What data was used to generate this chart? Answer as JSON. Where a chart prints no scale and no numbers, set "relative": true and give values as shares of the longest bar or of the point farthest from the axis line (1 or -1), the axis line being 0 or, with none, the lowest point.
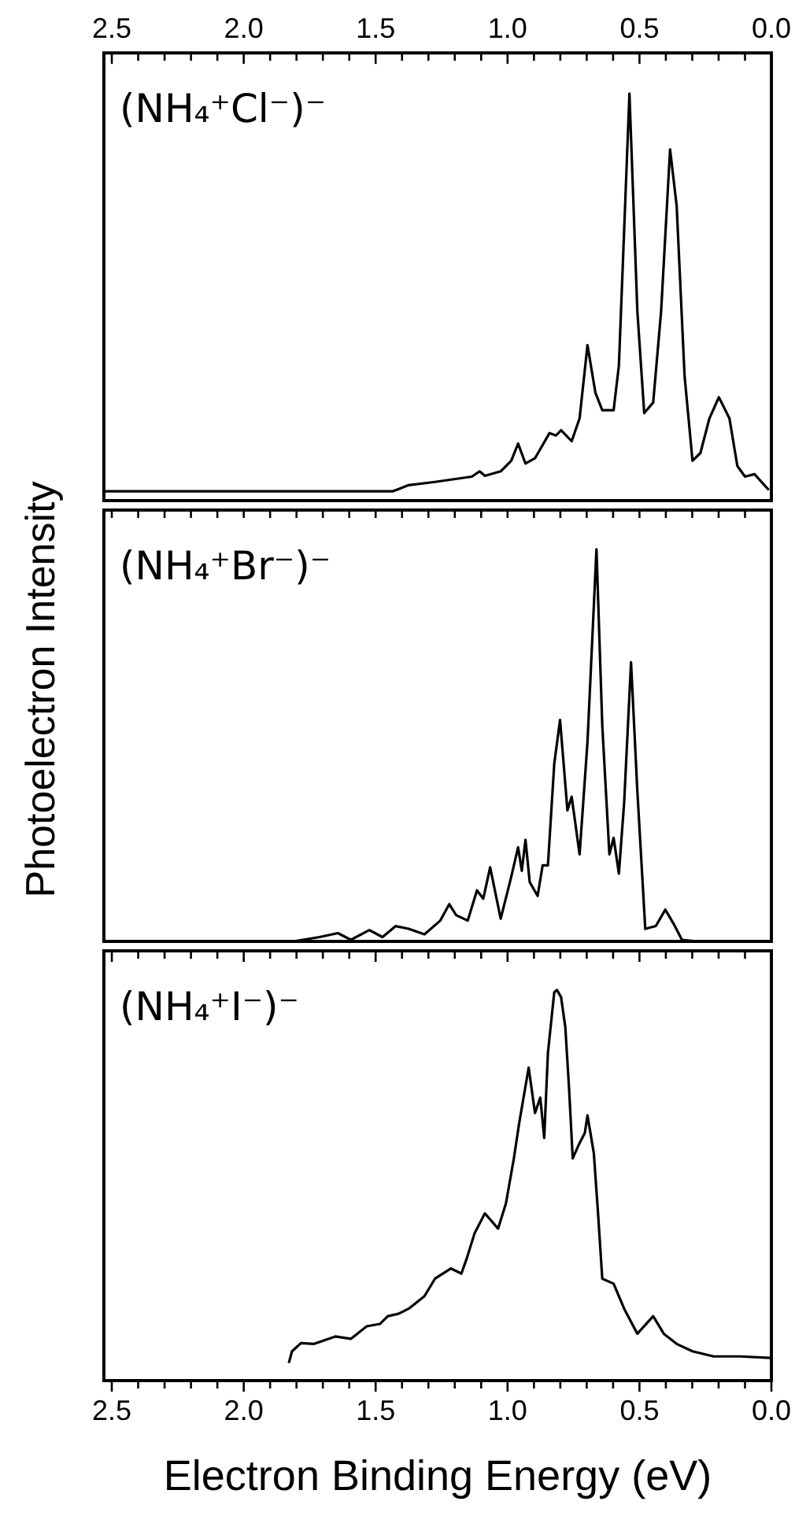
{
  "chart_data": [
    {
      "type": "line",
      "relative": true,
      "tick_labels": "x",
      "annotations": [
        "(NH₄⁺Cl⁻)⁻"
      ],
      "color": "#000000",
      "xlim": [
        2.53,
        0
      ],
      "xticks": [
        {
          "value": 2.5,
          "label": "2.5"
        },
        {
          "value": 2.4,
          "label": null
        },
        {
          "value": 2.3,
          "label": null
        },
        {
          "value": 2.2,
          "label": null
        },
        {
          "value": 2.1,
          "label": null
        },
        {
          "value": 2.0,
          "label": "2.0"
        },
        {
          "value": 1.9,
          "label": null
        },
        {
          "value": 1.8,
          "label": null
        },
        {
          "value": 1.7,
          "label": null
        },
        {
          "value": 1.6,
          "label": null
        },
        {
          "value": 1.5,
          "label": "1.5"
        },
        {
          "value": 1.4,
          "label": null
        },
        {
          "value": 1.3,
          "label": null
        },
        {
          "value": 1.2,
          "label": null
        },
        {
          "value": 1.1,
          "label": null
        },
        {
          "value": 1.0,
          "label": "1.0"
        },
        {
          "value": 0.9,
          "label": null
        },
        {
          "value": 0.8,
          "label": null
        },
        {
          "value": 0.7,
          "label": null
        },
        {
          "value": 0.6,
          "label": null
        },
        {
          "value": 0.5,
          "label": "0.5"
        },
        {
          "value": 0.4,
          "label": null
        },
        {
          "value": 0.3,
          "label": null
        },
        {
          "value": 0.2,
          "label": null
        },
        {
          "value": 0.1,
          "label": null
        },
        {
          "value": 0,
          "label": "0.0"
        }
      ],
      "x": [
        2.53,
        1.434,
        1.375,
        1.275,
        1.135,
        1.106,
        1.086,
        1.026,
        0.986,
        0.96,
        0.932,
        0.896,
        0.841,
        0.817,
        0.797,
        0.757,
        0.727,
        0.697,
        0.667,
        0.641,
        0.598,
        0.578,
        0.538,
        0.508,
        0.482,
        0.448,
        0.418,
        0.384,
        0.359,
        0.329,
        0.299,
        0.269,
        0.235,
        0.199,
        0.159,
        0.129,
        0.1,
        0.064,
        0.01
      ],
      "values": [
        0.023,
        0.023,
        0.038,
        0.046,
        0.059,
        0.072,
        0.061,
        0.072,
        0.098,
        0.14,
        0.091,
        0.104,
        0.166,
        0.16,
        0.173,
        0.146,
        0.202,
        0.382,
        0.265,
        0.222,
        0.222,
        0.332,
        1.0,
        0.465,
        0.215,
        0.241,
        0.465,
        0.863,
        0.724,
        0.306,
        0.098,
        0.117,
        0.202,
        0.254,
        0.202,
        0.085,
        0.059,
        0.065,
        0.026
      ]
    },
    {
      "type": "line",
      "relative": true,
      "tick_labels": false,
      "ylabel": "Photoelectron Intensity",
      "annotations": [
        "(NH₄⁺Br⁻)⁻"
      ],
      "color": "#000000",
      "xlim": [
        2.53,
        0
      ],
      "xticks": [
        {
          "value": 2.5,
          "label": null
        },
        {
          "value": 2.4,
          "label": null
        },
        {
          "value": 2.3,
          "label": null
        },
        {
          "value": 2.2,
          "label": null
        },
        {
          "value": 2.1,
          "label": null
        },
        {
          "value": 2.0,
          "label": null
        },
        {
          "value": 1.9,
          "label": null
        },
        {
          "value": 1.8,
          "label": null
        },
        {
          "value": 1.7,
          "label": null
        },
        {
          "value": 1.6,
          "label": null
        },
        {
          "value": 1.5,
          "label": null
        },
        {
          "value": 1.4,
          "label": null
        },
        {
          "value": 1.3,
          "label": null
        },
        {
          "value": 1.2,
          "label": null
        },
        {
          "value": 1.1,
          "label": null
        },
        {
          "value": 1.0,
          "label": null
        },
        {
          "value": 0.9,
          "label": null
        },
        {
          "value": 0.8,
          "label": null
        },
        {
          "value": 0.7,
          "label": null
        },
        {
          "value": 0.6,
          "label": null
        },
        {
          "value": 0.5,
          "label": null
        },
        {
          "value": 0.4,
          "label": null
        },
        {
          "value": 0.3,
          "label": null
        },
        {
          "value": 0.2,
          "label": null
        },
        {
          "value": 0.1,
          "label": null
        },
        {
          "value": 0,
          "label": null
        }
      ],
      "x": [
        2.53,
        1.813,
        1.713,
        1.643,
        1.594,
        1.524,
        1.474,
        1.424,
        1.375,
        1.315,
        1.255,
        1.221,
        1.195,
        1.151,
        1.116,
        1.092,
        1.066,
        1.026,
        0.986,
        0.96,
        0.946,
        0.932,
        0.916,
        0.886,
        0.867,
        0.847,
        0.823,
        0.801,
        0.773,
        0.757,
        0.727,
        0.697,
        0.663,
        0.641,
        0.614,
        0.598,
        0.578,
        0.558,
        0.532,
        0.508,
        0.478,
        0.438,
        0.402,
        0.369,
        0.339,
        0.279,
        0
      ],
      "values": [
        0,
        0,
        0.011,
        0.021,
        0.004,
        0.029,
        0.011,
        0.039,
        0.032,
        0.018,
        0.053,
        0.095,
        0.067,
        0.053,
        0.13,
        0.109,
        0.189,
        0.058,
        0.165,
        0.24,
        0.18,
        0.259,
        0.151,
        0.116,
        0.194,
        0.194,
        0.453,
        0.565,
        0.334,
        0.369,
        0.222,
        0.509,
        1.0,
        0.551,
        0.222,
        0.264,
        0.173,
        0.355,
        0.712,
        0.383,
        0.032,
        0.039,
        0.081,
        0.043,
        0.004,
        0,
        0
      ]
    },
    {
      "type": "line",
      "relative": true,
      "tick_labels": "x",
      "xlabel": "Electron Binding Energy (eV)",
      "annotations": [
        "(NH₄⁺I⁻)⁻"
      ],
      "color": "#000000",
      "xlim": [
        2.53,
        0
      ],
      "xticks": [
        {
          "value": 2.5,
          "label": "2.5"
        },
        {
          "value": 2.4,
          "label": null
        },
        {
          "value": 2.3,
          "label": null
        },
        {
          "value": 2.2,
          "label": null
        },
        {
          "value": 2.1,
          "label": null
        },
        {
          "value": 2.0,
          "label": "2.0"
        },
        {
          "value": 1.9,
          "label": null
        },
        {
          "value": 1.8,
          "label": null
        },
        {
          "value": 1.7,
          "label": null
        },
        {
          "value": 1.6,
          "label": null
        },
        {
          "value": 1.5,
          "label": "1.5"
        },
        {
          "value": 1.4,
          "label": null
        },
        {
          "value": 1.3,
          "label": null
        },
        {
          "value": 1.2,
          "label": null
        },
        {
          "value": 1.1,
          "label": null
        },
        {
          "value": 1.0,
          "label": "1.0"
        },
        {
          "value": 0.9,
          "label": null
        },
        {
          "value": 0.8,
          "label": null
        },
        {
          "value": 0.7,
          "label": null
        },
        {
          "value": 0.6,
          "label": null
        },
        {
          "value": 0.5,
          "label": "0.5"
        },
        {
          "value": 0.4,
          "label": null
        },
        {
          "value": 0.3,
          "label": null
        },
        {
          "value": 0.2,
          "label": null
        },
        {
          "value": 0.1,
          "label": null
        },
        {
          "value": 0,
          "label": "0.0"
        }
      ],
      "x": [
        1.829,
        1.817,
        1.783,
        1.733,
        1.653,
        1.594,
        1.534,
        1.484,
        1.454,
        1.414,
        1.375,
        1.315,
        1.275,
        1.215,
        1.175,
        1.155,
        1.125,
        1.086,
        1.036,
        1.006,
        0.976,
        0.956,
        0.92,
        0.896,
        0.876,
        0.861,
        0.847,
        0.823,
        0.813,
        0.797,
        0.781,
        0.767,
        0.753,
        0.727,
        0.707,
        0.697,
        0.673,
        0.657,
        0.641,
        0.598,
        0.558,
        0.508,
        0.448,
        0.408,
        0.359,
        0.299,
        0.219,
        0.12,
        0.004
      ],
      "values": [
        0.045,
        0.075,
        0.096,
        0.094,
        0.113,
        0.107,
        0.139,
        0.145,
        0.165,
        0.171,
        0.184,
        0.216,
        0.261,
        0.287,
        0.274,
        0.312,
        0.377,
        0.428,
        0.389,
        0.454,
        0.569,
        0.659,
        0.801,
        0.685,
        0.724,
        0.621,
        0.839,
        0.994,
        1.0,
        0.981,
        0.904,
        0.749,
        0.569,
        0.608,
        0.634,
        0.679,
        0.582,
        0.428,
        0.261,
        0.248,
        0.184,
        0.12,
        0.165,
        0.12,
        0.094,
        0.075,
        0.062,
        0.062,
        0.058
      ]
    }
  ]
}
